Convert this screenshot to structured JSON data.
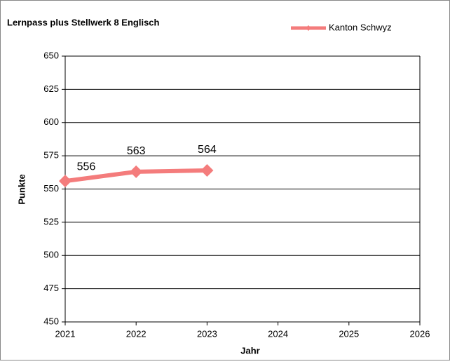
{
  "chart_data": {
    "type": "line",
    "title": "Lernpass plus Stellwerk 8 Englisch",
    "x_label": "Jahr",
    "y_label": "Punkte",
    "x": [
      2021,
      2022,
      2023
    ],
    "series": [
      {
        "name": "Kanton Schwyz",
        "color": "#f47c7c",
        "values": [
          556,
          563,
          564
        ]
      }
    ],
    "xlim": [
      2021,
      2026
    ],
    "xticks": [
      2021,
      2022,
      2023,
      2024,
      2025,
      2026
    ],
    "ylim": [
      450,
      650
    ],
    "yticks": [
      450,
      475,
      500,
      525,
      550,
      575,
      600,
      625,
      650
    ],
    "grid": true,
    "legend": "top-right"
  }
}
